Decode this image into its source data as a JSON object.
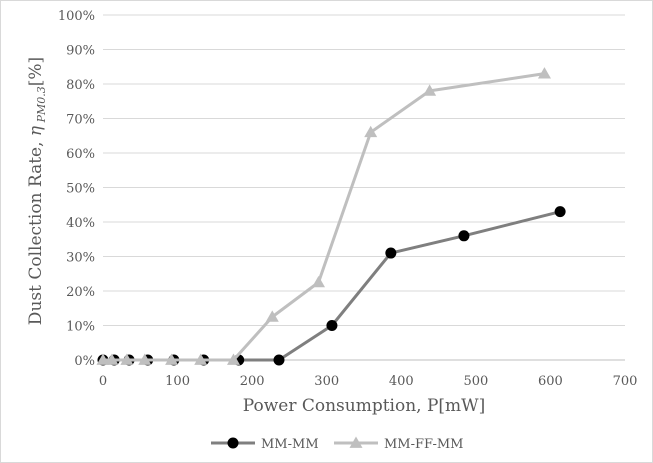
{
  "chart_data": {
    "type": "line",
    "xlabel": "Power Consumption, P[mW]",
    "ylabel": {
      "main": "Dust Collection Rate, ",
      "symbol": "η",
      "subscript": " PM0.3",
      "unit": "[%]"
    },
    "xlim": [
      0,
      700
    ],
    "ylim": [
      0,
      100
    ],
    "x_ticks": [
      "0",
      "100",
      "200",
      "300",
      "400",
      "500",
      "600",
      "700"
    ],
    "y_ticks": [
      "0%",
      "10%",
      "20%",
      "30%",
      "40%",
      "50%",
      "60%",
      "70%",
      "80%",
      "90%",
      "100%"
    ],
    "grid": "horizontal",
    "legend_position": "bottom",
    "series": [
      {
        "name": "MM-MM",
        "color": "#7f7f7f",
        "marker": "circle",
        "points": [
          [
            0,
            0
          ],
          [
            15,
            0
          ],
          [
            35,
            0
          ],
          [
            60,
            0
          ],
          [
            95,
            0
          ],
          [
            135,
            0
          ],
          [
            182,
            0
          ],
          [
            236,
            0
          ],
          [
            307,
            10
          ],
          [
            386,
            31
          ],
          [
            484,
            36
          ],
          [
            613,
            43
          ]
        ]
      },
      {
        "name": "MM-FF-MM",
        "color": "#bfbfbf",
        "marker": "triangle",
        "points": [
          [
            0,
            0
          ],
          [
            12,
            0
          ],
          [
            32,
            0
          ],
          [
            56,
            0
          ],
          [
            92,
            0
          ],
          [
            131,
            0
          ],
          [
            175,
            0
          ],
          [
            227,
            12.5
          ],
          [
            289,
            22.5
          ],
          [
            359,
            66
          ],
          [
            438,
            78
          ],
          [
            592,
            83
          ]
        ]
      }
    ]
  }
}
